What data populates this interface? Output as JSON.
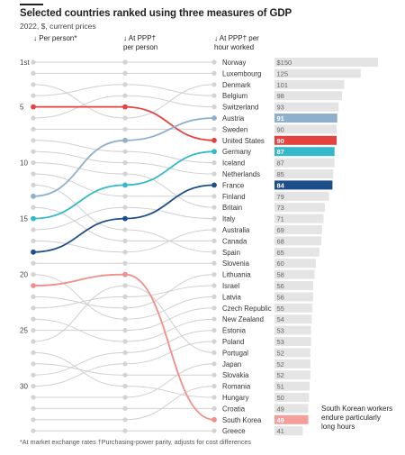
{
  "header": {
    "title": "Selected countries ranked using three measures of GDP",
    "subtitle": "2022, $, current prices"
  },
  "columns": [
    {
      "arrow": "↓",
      "line1": "Per person*",
      "line2": ""
    },
    {
      "arrow": "↓",
      "line1": "At PPP†",
      "line2": "per person"
    },
    {
      "arrow": "↓",
      "line1": "At PPP† per",
      "line2": "hour worked"
    }
  ],
  "footnote": "*At market exchange rates †Purchasing-power parity, adjusts for cost differences",
  "annotation": {
    "line1": "South Korean workers",
    "line2": "endure particularly",
    "line3": "long hours"
  },
  "chart_data": {
    "type": "bar",
    "rank_ticks": [
      "1st",
      "5",
      "10",
      "15",
      "20",
      "25",
      "30"
    ],
    "rank_tick_values": [
      1,
      5,
      10,
      15,
      20,
      25,
      30
    ],
    "countries": [
      {
        "name": "Norway",
        "value": 150,
        "label": "$150"
      },
      {
        "name": "Luxembourg",
        "value": 125,
        "label": "125"
      },
      {
        "name": "Denmark",
        "value": 101,
        "label": "101"
      },
      {
        "name": "Belgium",
        "value": 98,
        "label": "98"
      },
      {
        "name": "Switzerland",
        "value": 93,
        "label": "93"
      },
      {
        "name": "Austria",
        "value": 91,
        "label": "91"
      },
      {
        "name": "Sweden",
        "value": 90,
        "label": "90"
      },
      {
        "name": "United States",
        "value": 90,
        "label": "90"
      },
      {
        "name": "Germany",
        "value": 87,
        "label": "87"
      },
      {
        "name": "Iceland",
        "value": 87,
        "label": "87"
      },
      {
        "name": "Netherlands",
        "value": 85,
        "label": "85"
      },
      {
        "name": "France",
        "value": 84,
        "label": "84"
      },
      {
        "name": "Finland",
        "value": 79,
        "label": "79"
      },
      {
        "name": "Britain",
        "value": 73,
        "label": "73"
      },
      {
        "name": "Italy",
        "value": 71,
        "label": "71"
      },
      {
        "name": "Australia",
        "value": 69,
        "label": "69"
      },
      {
        "name": "Canada",
        "value": 68,
        "label": "68"
      },
      {
        "name": "Spain",
        "value": 65,
        "label": "65"
      },
      {
        "name": "Slovenia",
        "value": 60,
        "label": "60"
      },
      {
        "name": "Lithuania",
        "value": 58,
        "label": "58"
      },
      {
        "name": "Israel",
        "value": 56,
        "label": "56"
      },
      {
        "name": "Latvia",
        "value": 56,
        "label": "56"
      },
      {
        "name": "Czech Republic",
        "value": 55,
        "label": "55"
      },
      {
        "name": "New Zealand",
        "value": 54,
        "label": "54"
      },
      {
        "name": "Estonia",
        "value": 53,
        "label": "53"
      },
      {
        "name": "Poland",
        "value": 53,
        "label": "53"
      },
      {
        "name": "Portugal",
        "value": 52,
        "label": "52"
      },
      {
        "name": "Japan",
        "value": 52,
        "label": "52"
      },
      {
        "name": "Slovakia",
        "value": 52,
        "label": "52"
      },
      {
        "name": "Romania",
        "value": 51,
        "label": "51"
      },
      {
        "name": "Hungary",
        "value": 50,
        "label": "50"
      },
      {
        "name": "Croatia",
        "value": 49,
        "label": "49"
      },
      {
        "name": "South Korea",
        "value": 49,
        "label": "49"
      },
      {
        "name": "Greece",
        "value": 41,
        "label": "41"
      }
    ],
    "bar_max": 150,
    "highlights": [
      {
        "name": "United States",
        "ranks": [
          5,
          5,
          8
        ],
        "line_color": "#e3433f",
        "bar_color": "#e3433f"
      },
      {
        "name": "Austria",
        "ranks": [
          13,
          8,
          6
        ],
        "line_color": "#8fb0cd",
        "bar_color": "#8fb0cd"
      },
      {
        "name": "Germany",
        "ranks": [
          15,
          12,
          9
        ],
        "line_color": "#33b9c9",
        "bar_color": "#33b9c9"
      },
      {
        "name": "France",
        "ranks": [
          18,
          15,
          12
        ],
        "line_color": "#1d4e89",
        "bar_color": "#1d4e89"
      },
      {
        "name": "South Korea",
        "ranks": [
          21,
          20,
          33
        ],
        "line_color": "#f08f8a",
        "bar_color": "#f59d98"
      }
    ],
    "background_links": [
      [
        1,
        1,
        1
      ],
      [
        2,
        2,
        2
      ],
      [
        3,
        6,
        3
      ],
      [
        4,
        3,
        4
      ],
      [
        6,
        4,
        5
      ],
      [
        7,
        7,
        7
      ],
      [
        8,
        9,
        10
      ],
      [
        9,
        10,
        11
      ],
      [
        10,
        11,
        14
      ],
      [
        11,
        13,
        13
      ],
      [
        12,
        16,
        18
      ],
      [
        14,
        17,
        17
      ],
      [
        16,
        14,
        15
      ],
      [
        17,
        18,
        16
      ],
      [
        19,
        19,
        19
      ],
      [
        20,
        24,
        22
      ],
      [
        22,
        23,
        20
      ],
      [
        23,
        22,
        21
      ],
      [
        24,
        26,
        24
      ],
      [
        25,
        25,
        23
      ],
      [
        26,
        21,
        27
      ],
      [
        27,
        30,
        31
      ],
      [
        28,
        29,
        29
      ],
      [
        29,
        27,
        25
      ],
      [
        30,
        28,
        26
      ],
      [
        31,
        31,
        28
      ],
      [
        32,
        32,
        32
      ],
      [
        33,
        33,
        30
      ],
      [
        34,
        34,
        34
      ]
    ],
    "colors": {
      "grey_line": "#d0d0d0",
      "grey_dot": "#d3d3d3",
      "bar_grey": "#e4e4e4",
      "label_color": "#333333",
      "bar_text": "#666666"
    }
  }
}
